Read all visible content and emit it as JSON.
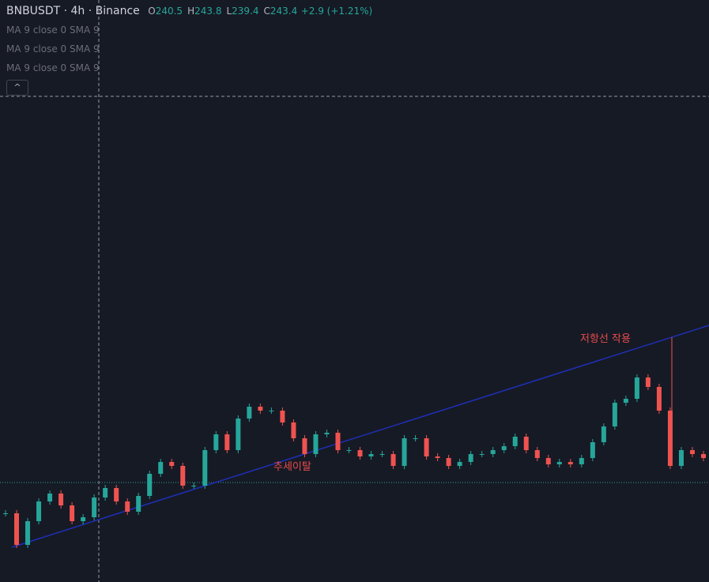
{
  "header": {
    "symbol": "BNBUSDT",
    "interval": "4h",
    "exchange": "Binance",
    "ohlc": [
      {
        "label": "O",
        "value": "240.5"
      },
      {
        "label": "H",
        "value": "243.8"
      },
      {
        "label": "L",
        "value": "239.4"
      },
      {
        "label": "C",
        "value": "243.4"
      }
    ],
    "change": "+2.9 (+1.21%)"
  },
  "indicators": [
    "MA 9 close 0 SMA 9",
    "MA 9 close 0 SMA 9",
    "MA 9 close 0 SMA 9"
  ],
  "annotations": [
    "추세이탈",
    "저항선 작용"
  ],
  "chart_data": {
    "type": "candlestick",
    "ylim": [
      212,
      334.8
    ],
    "up_color": "#26a69a",
    "down_color": "#ef5350",
    "series": [
      {
        "values": [
          229.4,
          221.4,
          227.4,
          232.4,
          234.4,
          231.4,
          227.4,
          228.4,
          233.4,
          235.8,
          232.4,
          229.8,
          233.8,
          239.4,
          242.4,
          241.4,
          236.4,
          236.4,
          245.4,
          249.4,
          245.4,
          253.4,
          256.4,
          255.4,
          255.4,
          252.4,
          248.4,
          244.4,
          249.4,
          249.8,
          245.4,
          245.4,
          243.8,
          244.4,
          244.4,
          241.4,
          248.4,
          248.4,
          243.8,
          243.4,
          241.4,
          242.4,
          244.4,
          244.4,
          245.4,
          246.4,
          248.8,
          245.4,
          243.4,
          241.8,
          242.4,
          241.8,
          243.4,
          247.4,
          251.4,
          257.4,
          258.4,
          263.8,
          261.4,
          255.4,
          241.4,
          245.4,
          244.4,
          243.4
        ]
      }
    ]
  }
}
